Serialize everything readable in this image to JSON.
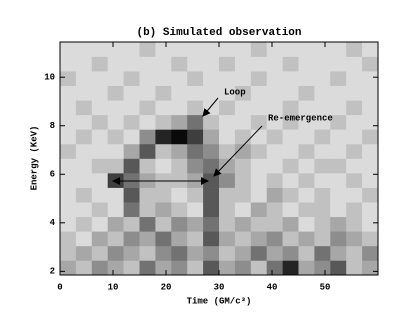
{
  "chart_data": {
    "type": "heatmap",
    "title": "(b) Simulated observation",
    "x_label": "Time (GM/c³)",
    "y_label": "Energy (KeV)",
    "annotations": [
      "Loop",
      "Re-emergence"
    ],
    "x": [
      1.5,
      4.5,
      7.5,
      10.5,
      13.5,
      16.5,
      19.5,
      22.5,
      25.5,
      28.5,
      31.5,
      34.5,
      37.5,
      40.5,
      43.5,
      46.5,
      49.5,
      52.5,
      55.5,
      58.5
    ],
    "y": [
      2.15,
      2.75,
      3.35,
      3.95,
      4.55,
      5.15,
      5.75,
      6.35,
      6.95,
      7.55,
      8.15,
      8.75,
      9.35,
      9.95,
      10.55,
      11.15
    ],
    "z": [
      [
        3,
        2,
        4,
        3,
        2,
        5,
        3,
        4,
        2,
        6,
        3,
        4,
        2,
        5,
        8,
        3,
        4,
        6,
        2,
        3
      ],
      [
        2,
        3,
        2,
        4,
        3,
        2,
        4,
        5,
        3,
        4,
        2,
        3,
        5,
        3,
        4,
        2,
        5,
        3,
        2,
        4
      ],
      [
        2,
        1,
        3,
        2,
        4,
        3,
        5,
        3,
        2,
        6,
        3,
        2,
        3,
        4,
        2,
        3,
        2,
        4,
        3,
        2
      ],
      [
        1,
        2,
        1,
        3,
        2,
        5,
        2,
        4,
        3,
        5,
        2,
        3,
        2,
        2,
        3,
        1,
        2,
        3,
        2,
        1
      ],
      [
        1,
        1,
        2,
        1,
        5,
        2,
        3,
        2,
        1,
        6,
        2,
        1,
        3,
        2,
        1,
        2,
        2,
        1,
        2,
        1
      ],
      [
        1,
        2,
        1,
        1,
        6,
        2,
        2,
        1,
        2,
        6,
        2,
        2,
        1,
        3,
        2,
        1,
        2,
        1,
        1,
        2
      ],
      [
        1,
        1,
        1,
        7,
        5,
        3,
        2,
        2,
        3,
        6,
        4,
        2,
        1,
        2,
        1,
        2,
        1,
        1,
        2,
        1
      ],
      [
        1,
        1,
        2,
        2,
        6,
        2,
        1,
        2,
        4,
        5,
        3,
        2,
        1,
        1,
        2,
        1,
        2,
        2,
        1,
        1
      ],
      [
        2,
        1,
        1,
        1,
        3,
        6,
        2,
        3,
        5,
        4,
        2,
        3,
        2,
        1,
        1,
        2,
        1,
        1,
        2,
        1
      ],
      [
        1,
        2,
        1,
        2,
        1,
        4,
        8,
        9,
        7,
        3,
        1,
        2,
        1,
        2,
        1,
        1,
        2,
        1,
        1,
        2
      ],
      [
        1,
        1,
        2,
        1,
        2,
        1,
        2,
        3,
        5,
        2,
        1,
        1,
        2,
        1,
        2,
        1,
        1,
        2,
        1,
        1
      ],
      [
        1,
        2,
        1,
        1,
        1,
        2,
        1,
        1,
        2,
        1,
        2,
        1,
        1,
        1,
        2,
        1,
        1,
        1,
        2,
        1
      ],
      [
        1,
        1,
        1,
        2,
        1,
        1,
        2,
        1,
        1,
        1,
        1,
        2,
        1,
        1,
        1,
        2,
        1,
        1,
        1,
        1
      ],
      [
        2,
        1,
        1,
        1,
        2,
        1,
        1,
        1,
        2,
        1,
        1,
        1,
        2,
        1,
        1,
        1,
        1,
        2,
        1,
        1
      ],
      [
        1,
        1,
        2,
        1,
        1,
        1,
        1,
        2,
        1,
        1,
        2,
        1,
        1,
        1,
        2,
        1,
        1,
        1,
        1,
        2
      ],
      [
        1,
        1,
        1,
        1,
        1,
        2,
        1,
        1,
        1,
        1,
        1,
        1,
        2,
        1,
        1,
        1,
        1,
        1,
        2,
        1
      ]
    ],
    "xlim": [
      0,
      60
    ],
    "ylim": [
      1.85,
      11.45
    ],
    "xticks": [
      0,
      10,
      20,
      30,
      40,
      50
    ],
    "yticks": [
      2,
      4,
      6,
      8,
      10
    ]
  }
}
